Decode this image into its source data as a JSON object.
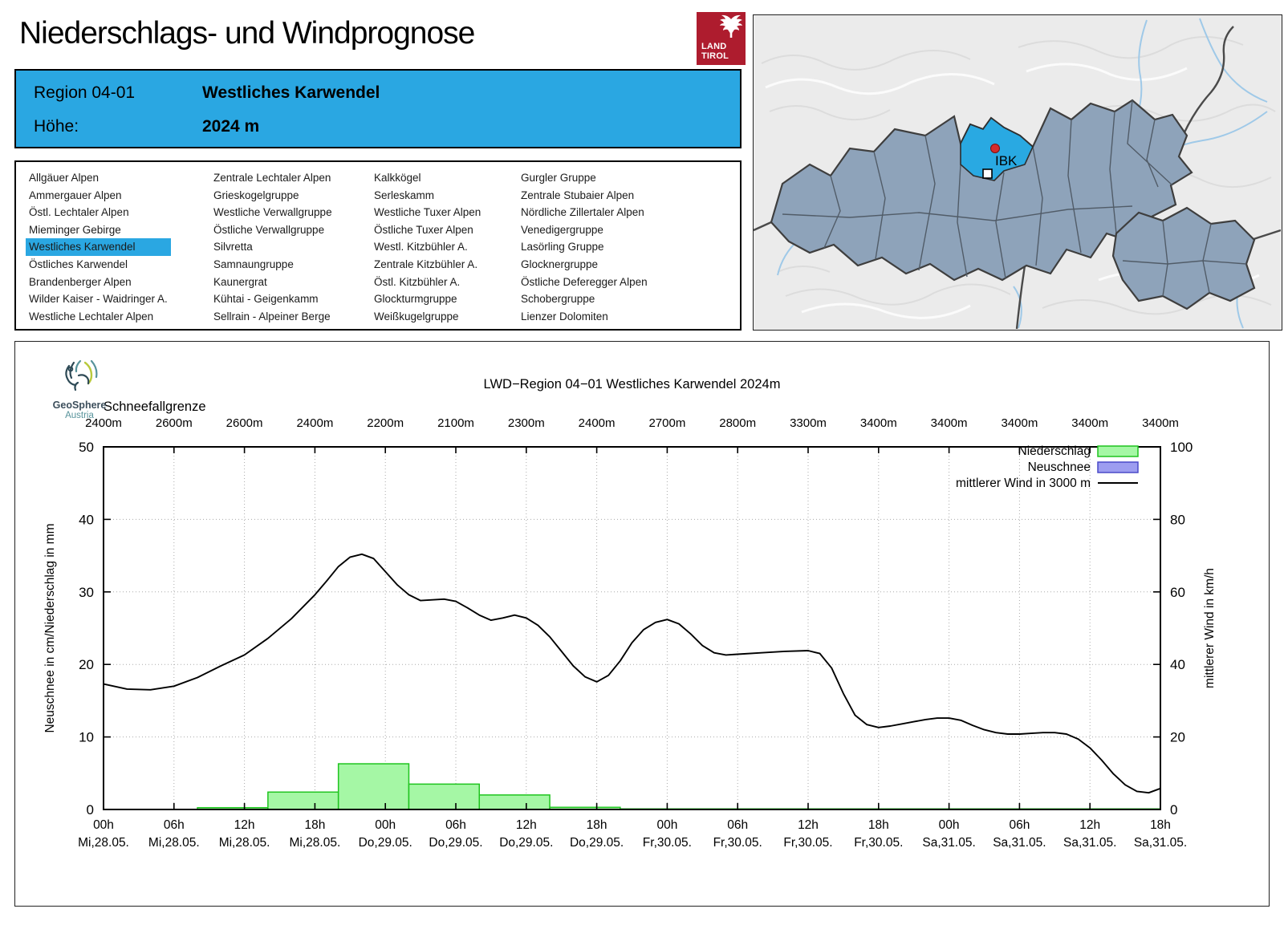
{
  "page": {
    "title": "Niederschlags- und Windprognose"
  },
  "tirol_logo": {
    "line1": "LAND",
    "line2": "TIROL"
  },
  "header": {
    "region_label": "Region 04-01",
    "region_name": "Westliches Karwendel",
    "altitude_label": "Höhe:",
    "altitude_value": "2024 m",
    "bg_color": "#2AA7E2"
  },
  "region_list": {
    "selected": "Westliches Karwendel",
    "columns": [
      [
        "Allgäuer Alpen",
        "Ammergauer Alpen",
        "Östl. Lechtaler Alpen",
        "Mieminger Gebirge",
        "Westliches Karwendel",
        "Östliches Karwendel",
        "Brandenberger Alpen",
        "Wilder Kaiser - Waidringer A.",
        "Westliche Lechtaler Alpen"
      ],
      [
        "Zentrale Lechtaler Alpen",
        "Grieskogelgruppe",
        "Westliche Verwallgruppe",
        "Östliche Verwallgruppe",
        "Silvretta",
        "Samnaungruppe",
        "Kaunergrat",
        "Kühtai - Geigenkamm",
        "Sellrain - Alpeiner Berge"
      ],
      [
        "Kalkkögel",
        "Serleskamm",
        "Westliche Tuxer Alpen",
        "Östliche Tuxer Alpen",
        "Westl. Kitzbühler A.",
        "Zentrale Kitzbühler A.",
        "Östl. Kitzbühler A.",
        "Glockturmgruppe",
        "Weißkugelgruppe"
      ],
      [
        "Gurgler Gruppe",
        "Zentrale Stubaier Alpen",
        "Nördliche Zillertaler Alpen",
        "Venedigergruppe",
        "Lasörling Gruppe",
        "Glocknergruppe",
        "Östliche Deferegger Alpen",
        "Schobergruppe",
        "Lienzer Dolomiten"
      ]
    ]
  },
  "map": {
    "marker_label": "IBK",
    "highlight_color": "#29A9E2",
    "region_fill": "#8EA3BA"
  },
  "branding": {
    "name": "GeoSphere",
    "sub": "Austria"
  },
  "chart_data": {
    "type": "mixed",
    "title": "LWD−Region 04−01 Westliches Karwendel 2024m",
    "snowline_label": "Schneefallgrenze",
    "snowline_values": [
      "2400m",
      "2600m",
      "2600m",
      "2400m",
      "2200m",
      "2100m",
      "2300m",
      "2400m",
      "2700m",
      "2800m",
      "3300m",
      "3400m",
      "3400m",
      "3400m",
      "3400m",
      "3400m"
    ],
    "ylabel_left": "Neuschnee in cm/Niederschlag in mm",
    "ylabel_right": "mittlerer Wind in km/h",
    "ylim_left": [
      0,
      50
    ],
    "ylim_right": [
      0,
      100
    ],
    "hours_total": 90,
    "x_ticks": [
      {
        "hour": "00h",
        "date": "Mi,28.05."
      },
      {
        "hour": "06h",
        "date": "Mi,28.05."
      },
      {
        "hour": "12h",
        "date": "Mi,28.05."
      },
      {
        "hour": "18h",
        "date": "Mi,28.05."
      },
      {
        "hour": "00h",
        "date": "Do,29.05."
      },
      {
        "hour": "06h",
        "date": "Do,29.05."
      },
      {
        "hour": "12h",
        "date": "Do,29.05."
      },
      {
        "hour": "18h",
        "date": "Do,29.05."
      },
      {
        "hour": "00h",
        "date": "Fr,30.05."
      },
      {
        "hour": "06h",
        "date": "Fr,30.05."
      },
      {
        "hour": "12h",
        "date": "Fr,30.05."
      },
      {
        "hour": "18h",
        "date": "Fr,30.05."
      },
      {
        "hour": "00h",
        "date": "Sa,31.05."
      },
      {
        "hour": "06h",
        "date": "Sa,31.05."
      },
      {
        "hour": "12h",
        "date": "Sa,31.05."
      },
      {
        "hour": "18h",
        "date": "Sa,31.05."
      }
    ],
    "legend": [
      {
        "label": "Niederschlag",
        "type": "box",
        "fill": "#A5F7A5",
        "stroke": "#1FC41F"
      },
      {
        "label": "Neuschnee",
        "type": "box",
        "fill": "#9D9DF0",
        "stroke": "#4A4AC8"
      },
      {
        "label": "mittlerer Wind in 3000 m",
        "type": "line",
        "stroke": "#000000"
      }
    ],
    "niederschlag_mm_boxes": [
      {
        "h0": 8,
        "h1": 14,
        "v": 0.25
      },
      {
        "h0": 14,
        "h1": 20,
        "v": 2.4
      },
      {
        "h0": 20,
        "h1": 26,
        "v": 6.3
      },
      {
        "h0": 26,
        "h1": 32,
        "v": 3.5
      },
      {
        "h0": 32,
        "h1": 38,
        "v": 2.0
      },
      {
        "h0": 38,
        "h1": 44,
        "v": 0.3
      },
      {
        "h0": 44,
        "h1": 90,
        "v": 0.08
      }
    ],
    "neuschnee_cm_boxes": [],
    "wind_kmh": [
      [
        0,
        34.6
      ],
      [
        2,
        33.2
      ],
      [
        4,
        33.0
      ],
      [
        6,
        34.0
      ],
      [
        8,
        36.4
      ],
      [
        10,
        39.6
      ],
      [
        12,
        42.6
      ],
      [
        14,
        47.2
      ],
      [
        16,
        52.6
      ],
      [
        18,
        59.2
      ],
      [
        19,
        63.0
      ],
      [
        20,
        67.0
      ],
      [
        21,
        69.6
      ],
      [
        22,
        70.4
      ],
      [
        23,
        69.2
      ],
      [
        24,
        65.6
      ],
      [
        25,
        62.0
      ],
      [
        26,
        59.2
      ],
      [
        27,
        57.6
      ],
      [
        28,
        57.8
      ],
      [
        29,
        58.0
      ],
      [
        30,
        57.4
      ],
      [
        31,
        55.6
      ],
      [
        32,
        53.6
      ],
      [
        33,
        52.2
      ],
      [
        34,
        52.8
      ],
      [
        35,
        53.6
      ],
      [
        36,
        52.8
      ],
      [
        37,
        50.8
      ],
      [
        38,
        47.6
      ],
      [
        39,
        43.6
      ],
      [
        40,
        39.6
      ],
      [
        41,
        36.6
      ],
      [
        42,
        35.2
      ],
      [
        43,
        37.0
      ],
      [
        44,
        41.0
      ],
      [
        45,
        46.0
      ],
      [
        46,
        49.6
      ],
      [
        47,
        51.6
      ],
      [
        48,
        52.4
      ],
      [
        49,
        51.2
      ],
      [
        50,
        48.4
      ],
      [
        51,
        45.2
      ],
      [
        52,
        43.2
      ],
      [
        53,
        42.6
      ],
      [
        54,
        42.8
      ],
      [
        56,
        43.2
      ],
      [
        58,
        43.6
      ],
      [
        60,
        43.8
      ],
      [
        61,
        43.0
      ],
      [
        62,
        39.0
      ],
      [
        63,
        32.0
      ],
      [
        64,
        26.0
      ],
      [
        65,
        23.4
      ],
      [
        66,
        22.6
      ],
      [
        67,
        23.0
      ],
      [
        68,
        23.6
      ],
      [
        69,
        24.2
      ],
      [
        70,
        24.8
      ],
      [
        71,
        25.2
      ],
      [
        72,
        25.2
      ],
      [
        73,
        24.6
      ],
      [
        74,
        23.2
      ],
      [
        75,
        22.0
      ],
      [
        76,
        21.2
      ],
      [
        77,
        20.8
      ],
      [
        78,
        20.8
      ],
      [
        79,
        21.0
      ],
      [
        80,
        21.2
      ],
      [
        81,
        21.2
      ],
      [
        82,
        20.8
      ],
      [
        83,
        19.4
      ],
      [
        84,
        17.0
      ],
      [
        85,
        13.6
      ],
      [
        86,
        9.8
      ],
      [
        87,
        6.8
      ],
      [
        88,
        5.0
      ],
      [
        89,
        4.6
      ],
      [
        90,
        5.8
      ]
    ]
  }
}
